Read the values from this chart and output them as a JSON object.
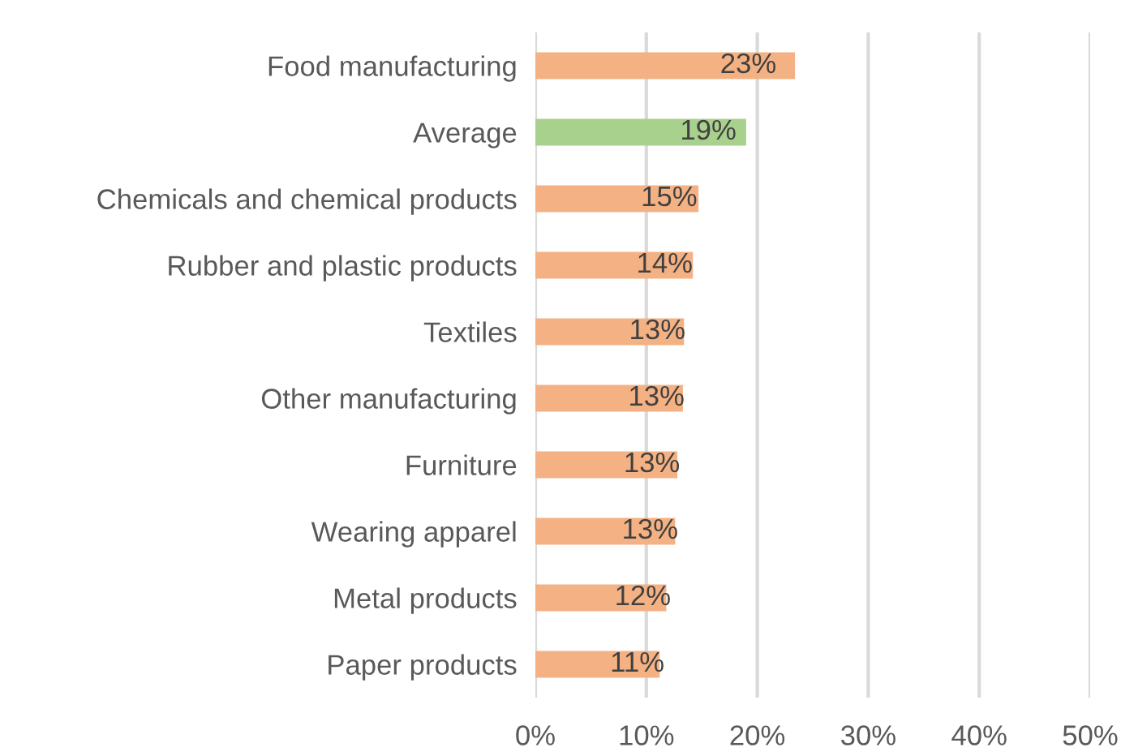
{
  "chart_data": {
    "type": "bar",
    "orientation": "horizontal",
    "categories": [
      "Food manufacturing",
      "Average",
      "Chemicals and chemical products",
      "Rubber and plastic products",
      "Textiles",
      "Other manufacturing",
      "Furniture",
      "Wearing apparel",
      "Metal products",
      "Paper products"
    ],
    "values": [
      23.4,
      19.0,
      14.7,
      14.2,
      13.4,
      13.3,
      12.8,
      12.6,
      11.8,
      11.2
    ],
    "value_labels": [
      "23%",
      "19%",
      "15%",
      "14%",
      "13%",
      "13%",
      "13%",
      "13%",
      "12%",
      "11%"
    ],
    "colors": [
      "#f4b183",
      "#a9d18e",
      "#f4b183",
      "#f4b183",
      "#f4b183",
      "#f4b183",
      "#f4b183",
      "#f4b183",
      "#f4b183",
      "#f4b183"
    ],
    "xlim": [
      0,
      50
    ],
    "xticks": [
      {
        "value": 0,
        "label": "0%"
      },
      {
        "value": 10,
        "label": "10%"
      },
      {
        "value": 20,
        "label": "20%"
      },
      {
        "value": 30,
        "label": "30%"
      },
      {
        "value": 40,
        "label": "40%"
      },
      {
        "value": 50,
        "label": "50%"
      }
    ],
    "grid": "x",
    "legend": false
  }
}
